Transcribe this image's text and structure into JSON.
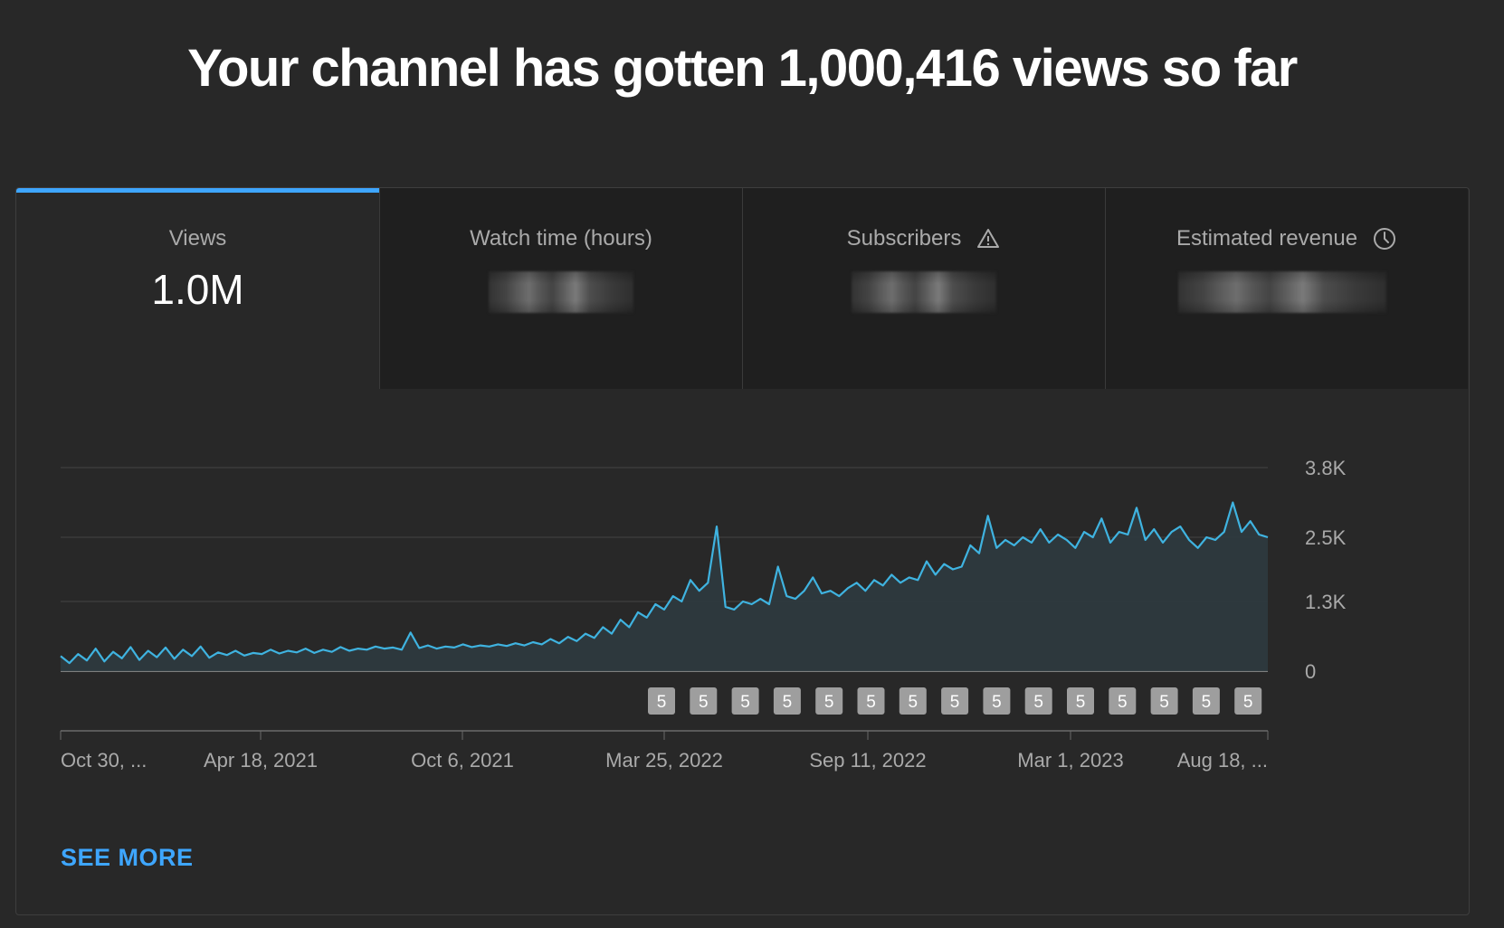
{
  "headline": "Your channel has gotten 1,000,416 views so far",
  "tabs": [
    {
      "label": "Views",
      "value": "1.0M",
      "active": true
    },
    {
      "label": "Watch time (hours)",
      "value": "",
      "active": false
    },
    {
      "label": "Subscribers",
      "value": "",
      "active": false,
      "icon": "warning-icon"
    },
    {
      "label": "Estimated revenue",
      "value": "",
      "active": false,
      "icon": "clock-icon"
    }
  ],
  "colors": {
    "background": "#282828",
    "tab_inactive": "#1f1f1f",
    "accent": "#3ea6ff",
    "line": "#3fb3e0",
    "area": "#2e3a3f",
    "marker_bg": "#9e9e9e"
  },
  "chart_data": {
    "type": "area",
    "title": "",
    "xlabel": "",
    "ylabel": "",
    "y_tick_labels": [
      "3.8K",
      "2.5K",
      "1.3K",
      "0"
    ],
    "y_ticks": [
      3800,
      2500,
      1300,
      0
    ],
    "ylim": [
      0,
      3800
    ],
    "x_tick_labels": [
      "Oct 30, ...",
      "Apr 18, 2021",
      "Oct 6, 2021",
      "Mar 25, 2022",
      "Sep 11, 2022",
      "Mar 1, 2023",
      "Aug 18, ..."
    ],
    "x_range": [
      "2020-10-30",
      "2023-08-18"
    ],
    "grid": true,
    "series": [
      {
        "values": [
          280,
          150,
          320,
          200,
          420,
          180,
          360,
          240,
          450,
          210,
          380,
          260,
          440,
          230,
          400,
          280,
          460,
          250,
          350,
          300,
          380,
          290,
          340,
          320,
          400,
          330,
          380,
          350,
          420,
          340,
          400,
          360,
          450,
          380,
          420,
          400,
          460,
          420,
          440,
          400,
          720,
          430,
          480,
          420,
          460,
          440,
          500,
          450,
          480,
          460,
          500,
          470,
          520,
          480,
          540,
          500,
          600,
          520,
          640,
          560,
          700,
          620,
          820,
          700,
          960,
          820,
          1100,
          1000,
          1250,
          1150,
          1400,
          1300,
          1700,
          1500,
          1650,
          2700,
          1200,
          1150,
          1300,
          1250,
          1350,
          1250,
          1950,
          1400,
          1350,
          1500,
          1750,
          1450,
          1500,
          1400,
          1550,
          1650,
          1500,
          1700,
          1600,
          1800,
          1650,
          1750,
          1700,
          2050,
          1800,
          2000,
          1900,
          1950,
          2350,
          2200,
          2900,
          2300,
          2450,
          2350,
          2500,
          2400,
          2650,
          2400,
          2550,
          2450,
          2300,
          2600,
          2500,
          2850,
          2400,
          2600,
          2550,
          3050,
          2450,
          2650,
          2400,
          2600,
          2700,
          2450,
          2300,
          2500,
          2450,
          2600,
          3150,
          2600,
          2800,
          2550,
          2500
        ]
      }
    ],
    "markers": [
      "5",
      "5",
      "5",
      "5",
      "5",
      "5",
      "5",
      "5",
      "5",
      "5",
      "5",
      "5",
      "5",
      "5",
      "5"
    ]
  },
  "see_more": "SEE MORE"
}
